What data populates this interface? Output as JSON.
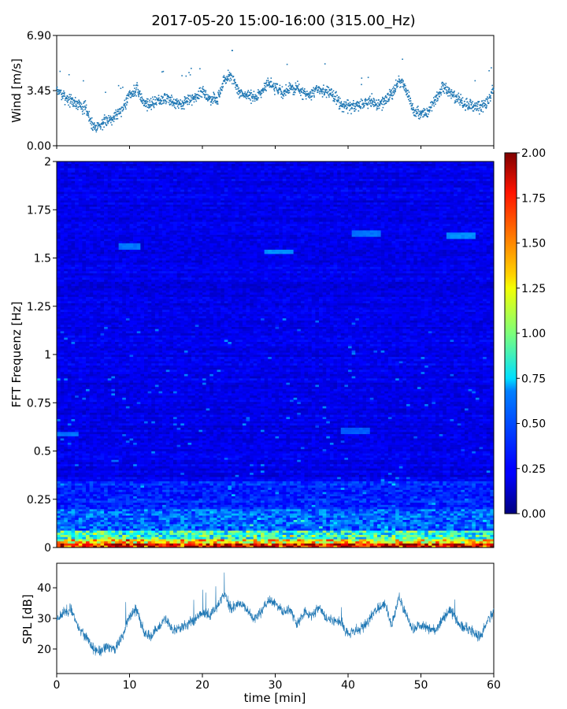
{
  "title": "2017-05-20 15:00-16:00 (315.00_Hz)",
  "chart_data": [
    {
      "type": "scatter",
      "ylabel": "Wind [m/s]",
      "xlim": [
        0,
        60
      ],
      "ylim": [
        0,
        6.9
      ],
      "yticks": [
        "0.00",
        "3.45",
        "6.90"
      ],
      "yticks_values": [
        0,
        3.45,
        6.9
      ],
      "x_tick_values": [
        0,
        10,
        20,
        30,
        40,
        50,
        60
      ],
      "x_tick_labels_visible": false,
      "color": "#1f77b4",
      "series": [
        {
          "x": [
            0,
            1,
            2,
            3,
            4,
            5,
            6,
            7,
            8,
            9,
            10,
            11,
            12,
            13,
            14,
            15,
            16,
            17,
            18,
            19,
            20,
            21,
            22,
            23,
            24,
            25,
            26,
            27,
            28,
            29,
            30,
            31,
            32,
            33,
            34,
            35,
            36,
            37,
            38,
            39,
            40,
            41,
            42,
            43,
            44,
            45,
            46,
            47,
            48,
            49,
            50,
            51,
            52,
            53,
            54,
            55,
            56,
            57,
            58,
            59,
            60
          ],
          "y": [
            3.5,
            3.1,
            2.8,
            2.6,
            2.3,
            1.2,
            1.3,
            1.6,
            1.9,
            2.3,
            3.2,
            3.5,
            2.7,
            2.6,
            2.9,
            3.0,
            2.7,
            2.6,
            2.8,
            3.1,
            3.4,
            2.9,
            2.9,
            4.1,
            4.4,
            3.3,
            3.2,
            3.0,
            3.3,
            4.0,
            3.6,
            3.3,
            3.6,
            3.6,
            3.2,
            3.2,
            3.6,
            3.4,
            3.1,
            2.6,
            2.5,
            2.4,
            2.6,
            2.8,
            2.6,
            2.8,
            3.2,
            4.1,
            3.5,
            2.1,
            2.0,
            2.1,
            2.9,
            3.6,
            3.3,
            3.0,
            2.6,
            2.5,
            2.4,
            2.7,
            3.6
          ]
        }
      ]
    },
    {
      "type": "heatmap",
      "ylabel": "FFT Frequenz [Hz]",
      "xlim": [
        0,
        60
      ],
      "ylim": [
        0,
        2
      ],
      "yticks": [
        "0",
        "0.25",
        "0.5",
        "0.75",
        "1",
        "1.25",
        "1.5",
        "1.75",
        "2"
      ],
      "yticks_values": [
        0,
        0.25,
        0.5,
        0.75,
        1,
        1.25,
        1.5,
        1.75,
        2
      ],
      "colormap": "jet",
      "colorbar": {
        "range": [
          0,
          2
        ],
        "ticks": [
          "0.00",
          "0.25",
          "0.50",
          "0.75",
          "1.00",
          "1.25",
          "1.50",
          "1.75",
          "2.00"
        ],
        "ticks_values": [
          0,
          0.25,
          0.5,
          0.75,
          1,
          1.25,
          1.5,
          1.75,
          2
        ]
      },
      "highlights": [
        {
          "x_range": [
            8.5,
            11.5
          ],
          "freq": 1.565,
          "value": 0.45
        },
        {
          "x_range": [
            28.5,
            32.5
          ],
          "freq": 1.535,
          "value": 0.5
        },
        {
          "x_range": [
            40.5,
            44.5
          ],
          "freq": 1.625,
          "value": 0.45
        },
        {
          "x_range": [
            53.5,
            57.5
          ],
          "freq": 1.615,
          "value": 0.5
        },
        {
          "x_range": [
            0,
            3
          ],
          "freq": 0.59,
          "value": 0.45
        },
        {
          "x_range": [
            39,
            43
          ],
          "freq": 0.605,
          "value": 0.4
        }
      ]
    },
    {
      "type": "line",
      "ylabel": "SPL [dB]",
      "xlabel": "time [min]",
      "xlim": [
        0,
        60
      ],
      "ylim": [
        12,
        48
      ],
      "yticks": [
        "20",
        "30",
        "40"
      ],
      "yticks_values": [
        20,
        30,
        40
      ],
      "xticks": [
        "0",
        "10",
        "20",
        "30",
        "40",
        "50",
        "60"
      ],
      "xticks_values": [
        0,
        10,
        20,
        30,
        40,
        50,
        60
      ],
      "color": "#1f77b4",
      "series": [
        {
          "x": [
            0,
            1,
            2,
            3,
            4,
            5,
            6,
            7,
            8,
            9,
            10,
            11,
            12,
            13,
            14,
            15,
            16,
            17,
            18,
            19,
            20,
            21,
            22,
            23,
            24,
            25,
            26,
            27,
            28,
            29,
            30,
            31,
            32,
            33,
            34,
            35,
            36,
            37,
            38,
            39,
            40,
            41,
            42,
            43,
            44,
            45,
            46,
            47,
            48,
            49,
            50,
            51,
            52,
            53,
            54,
            55,
            56,
            57,
            58,
            59,
            60
          ],
          "y": [
            30,
            32,
            33,
            27,
            24,
            20,
            19,
            21,
            20,
            24,
            31,
            33,
            25,
            24,
            27,
            30,
            26,
            27,
            28,
            30,
            32,
            31,
            34,
            38,
            33,
            35,
            33,
            30,
            32,
            36,
            35,
            32,
            33,
            28,
            32,
            31,
            34,
            30,
            29,
            29,
            25,
            26,
            27,
            30,
            33,
            35,
            28,
            37,
            31,
            26,
            28,
            27,
            26,
            30,
            33,
            29,
            27,
            26,
            24,
            28,
            32
          ]
        }
      ]
    }
  ]
}
